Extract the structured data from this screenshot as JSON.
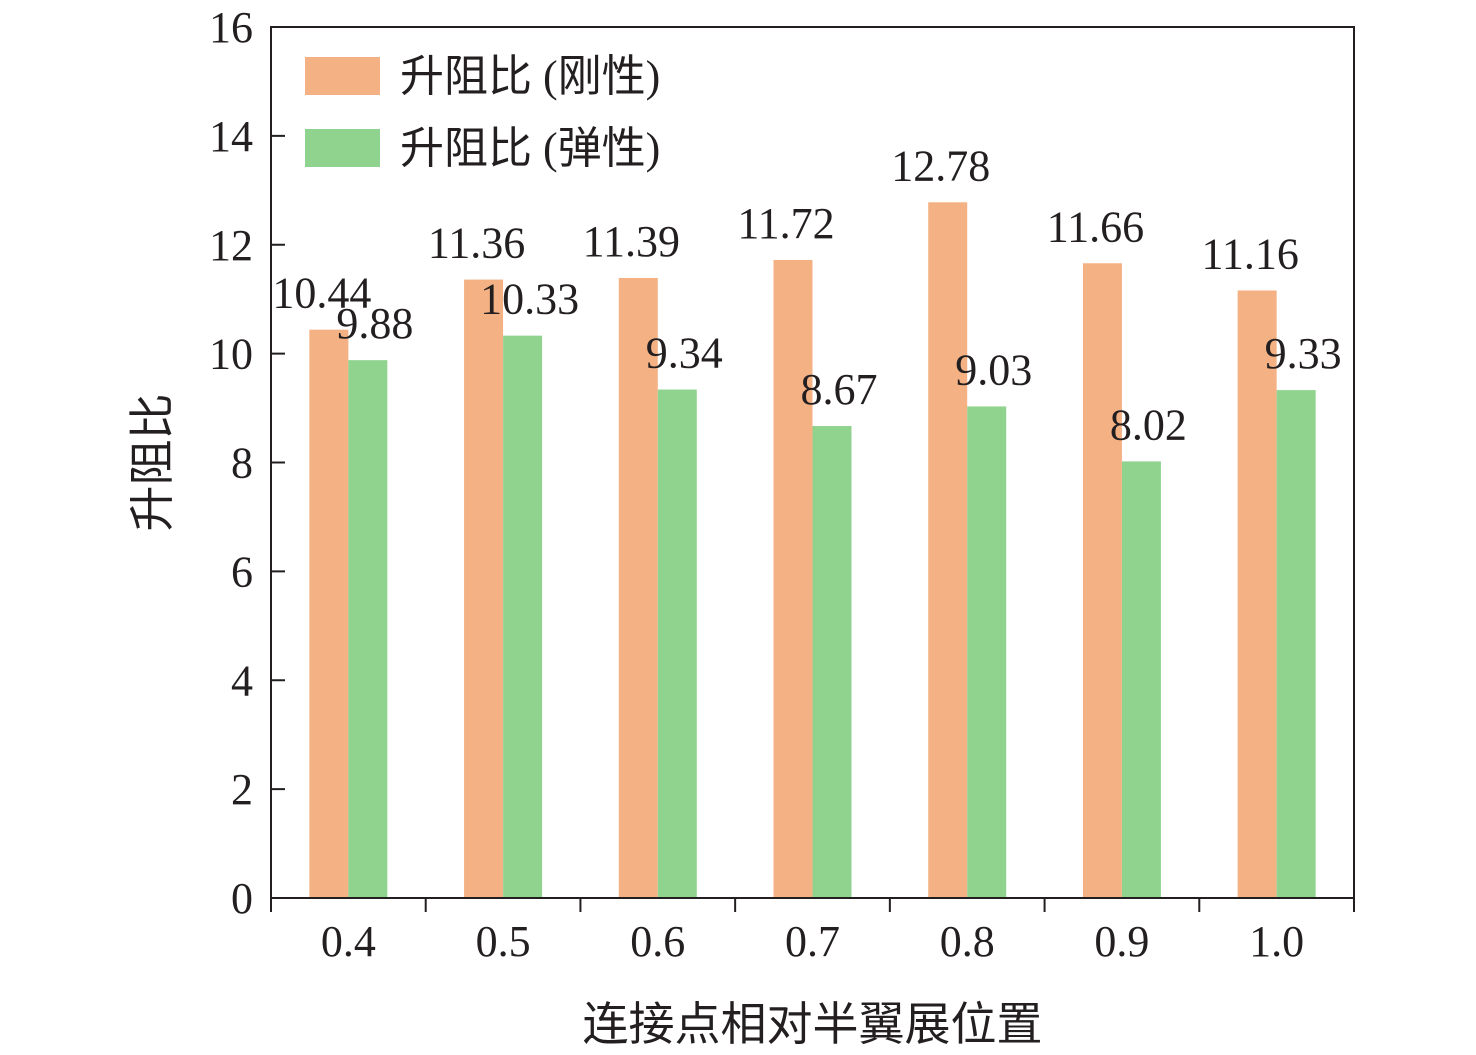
{
  "chart_data": {
    "type": "bar",
    "title": "",
    "xlabel": "连接点相对半翼展位置",
    "ylabel": "升阻比",
    "categories": [
      "0.4",
      "0.5",
      "0.6",
      "0.7",
      "0.8",
      "0.9",
      "1.0"
    ],
    "series": [
      {
        "name": "升阻比 (刚性)",
        "color": "#f4b183",
        "values": [
          10.44,
          11.36,
          11.39,
          11.72,
          12.78,
          11.66,
          11.16
        ],
        "labels": [
          "10.44",
          "11.36",
          "11.39",
          "11.72",
          "12.78",
          "11.66",
          "11.16"
        ]
      },
      {
        "name": "升阻比 (弹性)",
        "color": "#8fd38f",
        "values": [
          9.88,
          10.33,
          9.34,
          8.67,
          9.03,
          8.02,
          9.33
        ],
        "labels": [
          "9.88",
          "10.33",
          "9.34",
          "8.67",
          "9.03",
          "8.02",
          "9.33"
        ]
      }
    ],
    "ylim": [
      0,
      16
    ],
    "yticks": [
      0,
      2,
      4,
      6,
      8,
      10,
      12,
      14,
      16
    ],
    "ytick_labels": [
      "0",
      "2",
      "4",
      "6",
      "8",
      "10",
      "12",
      "14",
      "16"
    ],
    "grid": false,
    "legend_position": "top-left"
  }
}
